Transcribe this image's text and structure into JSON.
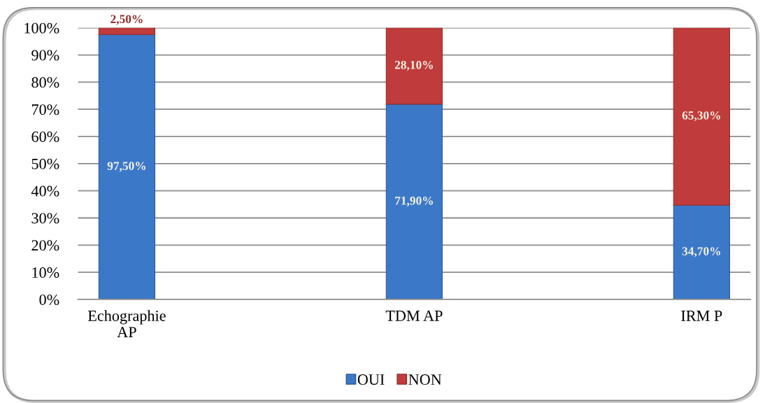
{
  "chart_data": {
    "type": "bar",
    "stacked": true,
    "categories": [
      "Echographie\nAP",
      "TDM AP",
      "IRM P"
    ],
    "series": [
      {
        "name": "OUI",
        "color": "#3c78c8",
        "values": [
          97.5,
          71.9,
          34.7
        ],
        "value_labels": [
          "97,50%",
          "71,90%",
          "34,70%"
        ]
      },
      {
        "name": "NON",
        "color": "#c03b3b",
        "values": [
          2.5,
          28.1,
          65.3
        ],
        "value_labels": [
          "2,50%",
          "28,10%",
          "65,30%"
        ]
      }
    ],
    "ylim": [
      0,
      100
    ],
    "yticks": [
      {
        "value": 0,
        "label": "0%"
      },
      {
        "value": 10,
        "label": "10%"
      },
      {
        "value": 20,
        "label": "20%"
      },
      {
        "value": 30,
        "label": "30%"
      },
      {
        "value": 40,
        "label": "40%"
      },
      {
        "value": 50,
        "label": "50%"
      },
      {
        "value": 60,
        "label": "60%"
      },
      {
        "value": 70,
        "label": "70%"
      },
      {
        "value": 80,
        "label": "80%"
      },
      {
        "value": 90,
        "label": "90%"
      },
      {
        "value": 100,
        "label": "100%"
      }
    ],
    "grid": "y",
    "legend": "bottom"
  }
}
